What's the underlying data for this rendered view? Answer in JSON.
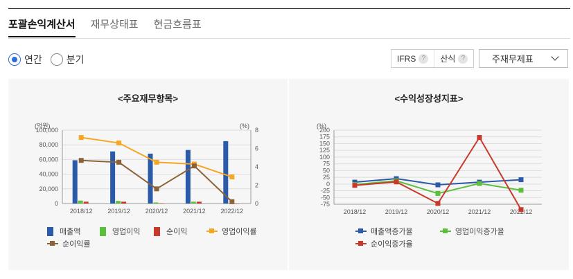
{
  "tabs": [
    "포괄손익계산서",
    "재무상태표",
    "현금흐름표"
  ],
  "period": {
    "annual": "연간",
    "quarterly": "분기",
    "selected": "annual"
  },
  "options": {
    "ifrs": "IFRS",
    "formula": "산식",
    "help": "?"
  },
  "statement_select": {
    "value": "주재무제표"
  },
  "colors": {
    "revenue": "#2a5aa8",
    "op_income": "#5cbf3c",
    "net_income": "#c8392b",
    "op_margin": "#f5a623",
    "net_margin": "#8c6239",
    "rev_growth": "#2a5aa8",
    "op_growth": "#5cbf3c",
    "net_growth": "#c8392b"
  },
  "chart_data": [
    {
      "type": "bar",
      "title": "<주요재무항목>",
      "categories": [
        "2018/12",
        "2019/12",
        "2020/12",
        "2021/12",
        "2022/12"
      ],
      "y_left": {
        "unit": "(억원)",
        "ylim": [
          0,
          100000
        ],
        "ticks": [
          "0",
          "20,000",
          "40,000",
          "60,000",
          "80,000",
          "100,000"
        ],
        "tick_values": [
          0,
          20000,
          40000,
          60000,
          80000,
          100000
        ]
      },
      "y_right": {
        "unit": "(%)",
        "ylim": [
          0,
          8
        ],
        "ticks": [
          "0",
          "2",
          "4",
          "6",
          "8"
        ],
        "tick_values": [
          0,
          2,
          4,
          6,
          8
        ]
      },
      "series": [
        {
          "name": "매출액",
          "kind": "bar",
          "axis": "left",
          "color_key": "revenue",
          "values": [
            59000,
            71000,
            68000,
            73000,
            85000
          ]
        },
        {
          "name": "영업이익",
          "kind": "bar",
          "axis": "left",
          "color_key": "op_income",
          "values": [
            4000,
            3500,
            1500,
            2500,
            0
          ]
        },
        {
          "name": "순이익",
          "kind": "bar",
          "axis": "left",
          "color_key": "net_income",
          "values": [
            2500,
            2500,
            500,
            2500,
            -500
          ]
        },
        {
          "name": "영업이익률",
          "kind": "line",
          "axis": "right",
          "color_key": "op_margin",
          "values": [
            7.2,
            6.6,
            4.5,
            4.3,
            2.9
          ]
        },
        {
          "name": "순이익률",
          "kind": "line",
          "axis": "right",
          "color_key": "net_margin",
          "values": [
            4.7,
            4.5,
            1.6,
            4.1,
            0.2
          ]
        }
      ],
      "grid": true,
      "legend": "bottom"
    },
    {
      "type": "line",
      "title": "<수익성장성지표>",
      "categories": [
        "2018/12",
        "2019/12",
        "2020/12",
        "2021/12",
        "2022/12"
      ],
      "y_left": {
        "unit": "(%)",
        "ylim": [
          -75,
          200
        ],
        "ticks": [
          "-75",
          "-50",
          "-25",
          "0",
          "25",
          "50",
          "75",
          "100",
          "125",
          "150",
          "175",
          "200"
        ],
        "tick_values": [
          -75,
          -50,
          -25,
          0,
          25,
          50,
          75,
          100,
          125,
          150,
          175,
          200
        ]
      },
      "series": [
        {
          "name": "매출액증가율",
          "kind": "line",
          "color_key": "rev_growth",
          "values": [
            7,
            20,
            -3,
            7,
            16
          ]
        },
        {
          "name": "영업이익증가율",
          "kind": "line",
          "color_key": "op_growth",
          "values": [
            -2,
            12,
            -35,
            2,
            -23
          ]
        },
        {
          "name": "순이익증가율",
          "kind": "line",
          "color_key": "net_growth",
          "values": [
            -5,
            8,
            -72,
            173,
            -95
          ]
        }
      ],
      "grid": true,
      "legend": "bottom"
    }
  ]
}
